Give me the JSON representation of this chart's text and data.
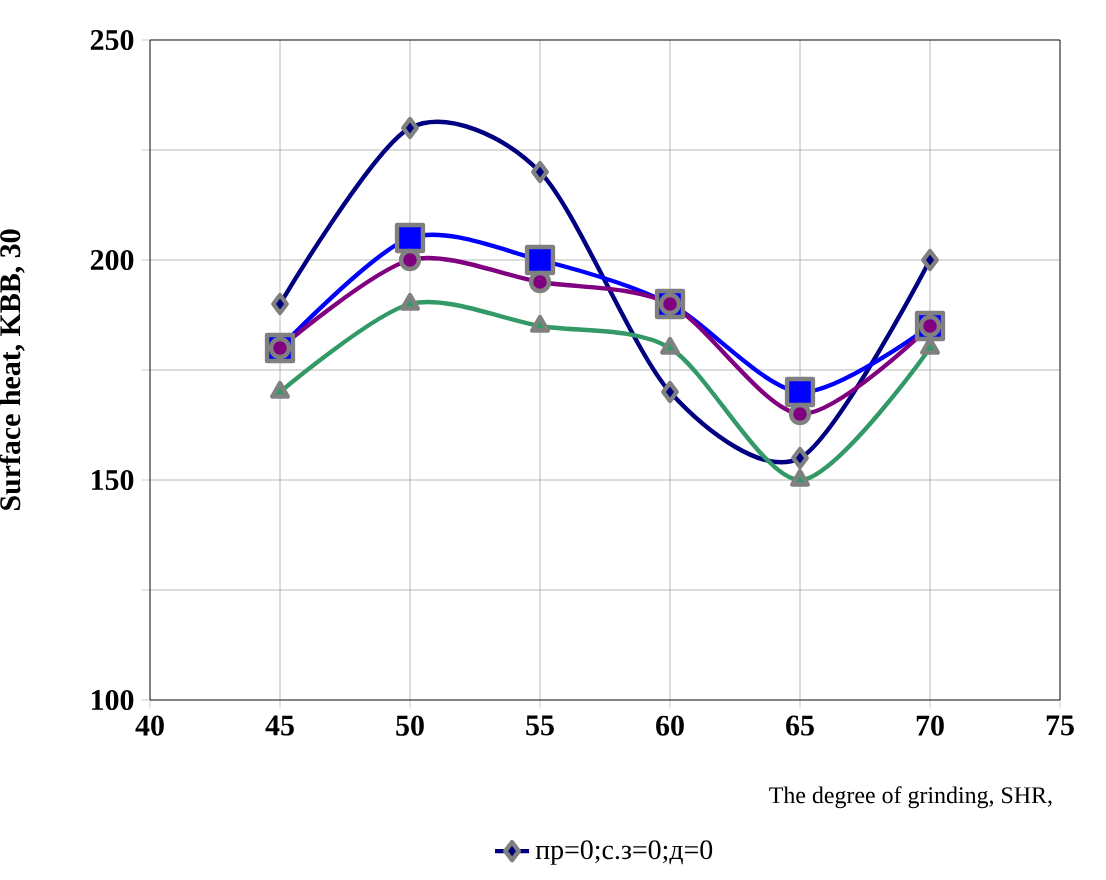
{
  "chart_data": {
    "type": "line",
    "xlabel": "The degree of grinding, SHR,",
    "ylabel": "Surface heat, KBB, 30",
    "x": [
      45,
      50,
      55,
      60,
      65,
      70
    ],
    "xlim": [
      40,
      75
    ],
    "xticks": [
      40,
      45,
      50,
      55,
      60,
      65,
      70,
      75
    ],
    "ylim": [
      100,
      250
    ],
    "yticks": [
      100,
      {
        "value": 125,
        "label": null
      },
      150,
      {
        "value": 175,
        "label": null
      },
      200,
      {
        "value": 225,
        "label": null
      },
      250
    ],
    "grid": true,
    "legend": "bottom",
    "series": [
      {
        "name": "пр=0;с.з=0;д=0",
        "color": "#000080",
        "marker": "diamond",
        "values": [
          190,
          230,
          220,
          170,
          155,
          200
        ]
      },
      {
        "color": "#0000ff",
        "marker": "square",
        "values": [
          180,
          205,
          200,
          190,
          170,
          185
        ]
      },
      {
        "color": "#800080",
        "marker": "circle",
        "values": [
          180,
          200,
          195,
          190,
          165,
          185
        ]
      },
      {
        "color": "#339966",
        "marker": "triangle",
        "values": [
          170,
          190,
          185,
          180,
          150,
          180
        ]
      }
    ]
  }
}
